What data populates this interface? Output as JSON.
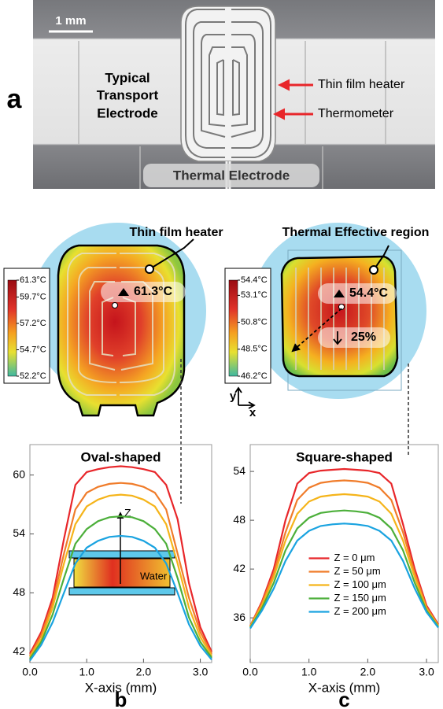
{
  "panel_a": {
    "label": "a",
    "scale_bar": "1 mm",
    "electrode_label": [
      "Typical",
      "Transport",
      "Electrode"
    ],
    "heater_label": "Thin film heater",
    "thermometer_label": "Thermometer",
    "thermal_electrode_label": "Thermal Electrode"
  },
  "heatmaps": [
    {
      "callout": "Thin film heater",
      "peak_label": "61.3°C",
      "colorbar_ticks": [
        {
          "value": 61.3,
          "label": "61.3°C"
        },
        {
          "value": 59.7,
          "label": "59.7°C"
        },
        {
          "value": 57.2,
          "label": "57.2°C"
        },
        {
          "value": 54.7,
          "label": "54.7°C"
        },
        {
          "value": 52.2,
          "label": "52.2°C"
        }
      ]
    },
    {
      "callout": "Thermal Effective region",
      "peak_label": "54.4°C",
      "reduction_label": "25%",
      "colorbar_ticks": [
        {
          "value": 54.4,
          "label": "54.4°C"
        },
        {
          "value": 53.1,
          "label": "53.1°C"
        },
        {
          "value": 50.8,
          "label": "50.8°C"
        },
        {
          "value": 48.5,
          "label": "48.5°C"
        },
        {
          "value": 46.2,
          "label": "46.2°C"
        }
      ]
    }
  ],
  "axes_icon": {
    "y": "y",
    "x": "x"
  },
  "chart_data": [
    {
      "type": "line",
      "title": "Oval-shaped",
      "panel_label": "b",
      "x_label": "X-axis (mm)",
      "xlim": [
        0,
        3.2
      ],
      "xticks": [
        {
          "value": 0,
          "label": "0.0"
        },
        {
          "value": 1,
          "label": "1.0"
        },
        {
          "value": 2,
          "label": "2.0"
        },
        {
          "value": 3,
          "label": "3.0"
        }
      ],
      "ylim": [
        40.9,
        63.1
      ],
      "yticks": [
        42,
        48,
        54,
        60
      ],
      "x": [
        0,
        0.2,
        0.4,
        0.6,
        0.8,
        1.0,
        1.2,
        1.4,
        1.6,
        1.8,
        2.0,
        2.2,
        2.4,
        2.6,
        2.8,
        3.0,
        3.2
      ],
      "series": [
        {
          "color": "#e8262a",
          "values": [
            41.8,
            44,
            47.5,
            53.5,
            59,
            60.3,
            60.6,
            60.8,
            60.9,
            60.8,
            60.6,
            60.3,
            59,
            55.5,
            49,
            44.5,
            42
          ]
        },
        {
          "color": "#f07c2a",
          "values": [
            41.6,
            43.7,
            47,
            52,
            56.5,
            58.2,
            58.8,
            59.1,
            59.2,
            59.1,
            58.8,
            58.2,
            56.5,
            52,
            47.5,
            44,
            41.8
          ]
        },
        {
          "color": "#f5b41a",
          "values": [
            41.5,
            43.3,
            46.5,
            51,
            55,
            56.8,
            57.5,
            57.9,
            58,
            57.9,
            57.5,
            56.8,
            55,
            51,
            46.5,
            43.5,
            41.6
          ]
        },
        {
          "color": "#4caf3a",
          "values": [
            41.3,
            43,
            45.8,
            49.5,
            53,
            54.5,
            55.3,
            55.7,
            55.8,
            55.7,
            55.3,
            54.5,
            53,
            49.5,
            45.5,
            43,
            41.4
          ]
        },
        {
          "color": "#1aa3e0",
          "values": [
            41.1,
            42.7,
            45,
            48,
            51,
            52.6,
            53.3,
            53.7,
            53.8,
            53.7,
            53.3,
            52.6,
            51,
            48,
            44.8,
            42.6,
            41.2
          ]
        }
      ],
      "inset": {
        "axis": "Z",
        "medium": "Water"
      }
    },
    {
      "type": "line",
      "title": "Square-shaped",
      "panel_label": "c",
      "x_label": "X-axis (mm)",
      "xlim": [
        0,
        3.2
      ],
      "xticks": [
        {
          "value": 0,
          "label": "0.0"
        },
        {
          "value": 1,
          "label": "1.0"
        },
        {
          "value": 2,
          "label": "2.0"
        },
        {
          "value": 3,
          "label": "3.0"
        }
      ],
      "ylim": [
        30.5,
        57.3
      ],
      "yticks": [
        36,
        42,
        48,
        54
      ],
      "x": [
        0,
        0.2,
        0.4,
        0.6,
        0.8,
        1.0,
        1.2,
        1.4,
        1.6,
        1.8,
        2.0,
        2.2,
        2.4,
        2.6,
        2.8,
        3.0,
        3.2
      ],
      "series": [
        {
          "name": "Z = 0 μm",
          "color": "#e8262a",
          "values": [
            35,
            38,
            42,
            48,
            52.5,
            53.8,
            54.1,
            54.2,
            54.3,
            54.2,
            54.1,
            53.8,
            52.5,
            47.5,
            42,
            37.5,
            35.2
          ]
        },
        {
          "name": "Z = 50 μm",
          "color": "#f07c2a",
          "values": [
            35,
            37.8,
            41.5,
            46.5,
            50.5,
            52,
            52.6,
            52.8,
            52.9,
            52.8,
            52.6,
            52,
            50.5,
            46.5,
            41.5,
            37.3,
            35.1
          ]
        },
        {
          "name": "Z = 100 μm",
          "color": "#f5b41a",
          "values": [
            34.9,
            37.5,
            41,
            45.5,
            48.8,
            50.3,
            50.9,
            51.1,
            51.2,
            51.1,
            50.9,
            50.3,
            48.8,
            45.5,
            41,
            37.1,
            35
          ]
        },
        {
          "name": "Z = 150 μm",
          "color": "#4caf3a",
          "values": [
            34.8,
            37.2,
            40.3,
            44.3,
            47,
            48.3,
            48.9,
            49.1,
            49.2,
            49.1,
            48.9,
            48.3,
            47,
            44.3,
            40.3,
            36.9,
            34.9
          ]
        },
        {
          "name": "Z = 200 μm",
          "color": "#1aa3e0",
          "values": [
            34.7,
            36.9,
            39.6,
            43,
            45.5,
            46.7,
            47.3,
            47.5,
            47.6,
            47.5,
            47.3,
            46.7,
            45.5,
            43,
            39.6,
            36.7,
            34.8
          ]
        }
      ],
      "legend": "center"
    }
  ]
}
